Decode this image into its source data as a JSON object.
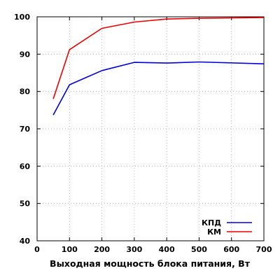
{
  "chart_data": {
    "type": "line",
    "xlabel": "Выходная мощность блока питания, Вт",
    "ylabel": "",
    "xlim": [
      0,
      700
    ],
    "ylim": [
      40,
      100
    ],
    "xticks": [
      0,
      100,
      200,
      300,
      400,
      500,
      600,
      700
    ],
    "yticks": [
      40,
      50,
      60,
      70,
      80,
      90,
      100
    ],
    "grid": true,
    "legend_position": "bottom-right",
    "series": [
      {
        "name": "КПД",
        "color": "#0000dd",
        "x": [
          50,
          100,
          200,
          300,
          400,
          500,
          700
        ],
        "values": [
          73.7,
          81.8,
          85.6,
          87.8,
          87.6,
          87.9,
          87.4
        ]
      },
      {
        "name": "КМ",
        "color": "#ee0000",
        "x": [
          50,
          100,
          200,
          300,
          400,
          500,
          700
        ],
        "values": [
          78.0,
          91.2,
          96.9,
          98.6,
          99.4,
          99.6,
          99.8
        ]
      }
    ]
  }
}
